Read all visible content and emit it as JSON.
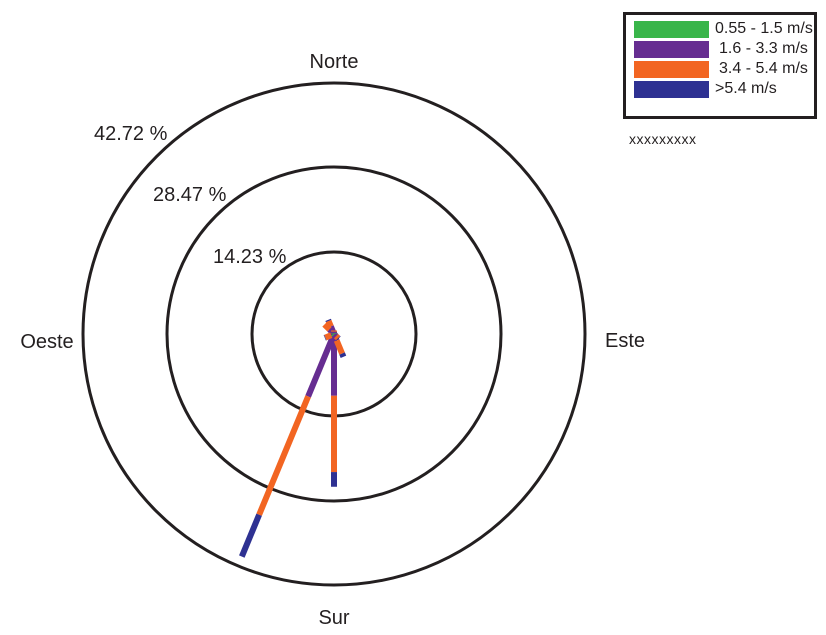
{
  "chart_data": {
    "type": "windrose",
    "directions": {
      "north": "Norte",
      "south": "Sur",
      "east": "Este",
      "west": "Oeste"
    },
    "ring_labels": [
      "14.23 %",
      "28.47 %",
      "42.72 %"
    ],
    "ring_values": [
      14.23,
      28.47,
      42.72
    ],
    "bins": [
      {
        "name": "0.55 - 1.5 m/s",
        "color": "#39b54a"
      },
      {
        "name": "1.6 - 3.3 m/s",
        "color": "#662d91"
      },
      {
        "name": "3.4 - 5.4 m/s",
        "color": "#f26522"
      },
      {
        "name": ">5.4 m/s",
        "color": "#2e3192"
      }
    ],
    "spokes": [
      {
        "direction_deg": 202.5,
        "cumulative_percent": [
          0.3,
          11.5,
          33.3,
          41.0
        ]
      },
      {
        "direction_deg": 180,
        "cumulative_percent": [
          0.2,
          10.5,
          23.5,
          26.0
        ]
      },
      {
        "direction_deg": 337.5,
        "cumulative_percent": [
          0.2,
          1.4,
          2.4,
          2.6
        ]
      },
      {
        "direction_deg": 315,
        "cumulative_percent": [
          0.1,
          1.1,
          2.3,
          2.3
        ]
      },
      {
        "direction_deg": 247.5,
        "cumulative_percent": [
          0.1,
          0.5,
          1.6,
          1.7
        ]
      },
      {
        "direction_deg": 157.5,
        "cumulative_percent": [
          0.2,
          1.2,
          3.6,
          4.2
        ]
      },
      {
        "direction_deg": 135,
        "cumulative_percent": [
          0.1,
          0.5,
          1.0,
          1.1
        ]
      },
      {
        "direction_deg": 0,
        "cumulative_percent": [
          0.1,
          0.4,
          0.6,
          0.6
        ]
      }
    ]
  },
  "legend": {
    "items": [
      {
        "label": "0.55 - 1.5 m/s",
        "color": "#39b54a"
      },
      {
        "label": "1.6 - 3.3 m/s",
        "color": "#662d91"
      },
      {
        "label": "3.4 - 5.4 m/s",
        "color": "#f26522"
      },
      {
        "label": ">5.4 m/s",
        "color": "#2e3192"
      }
    ]
  },
  "note": "xxxxxxxxx"
}
